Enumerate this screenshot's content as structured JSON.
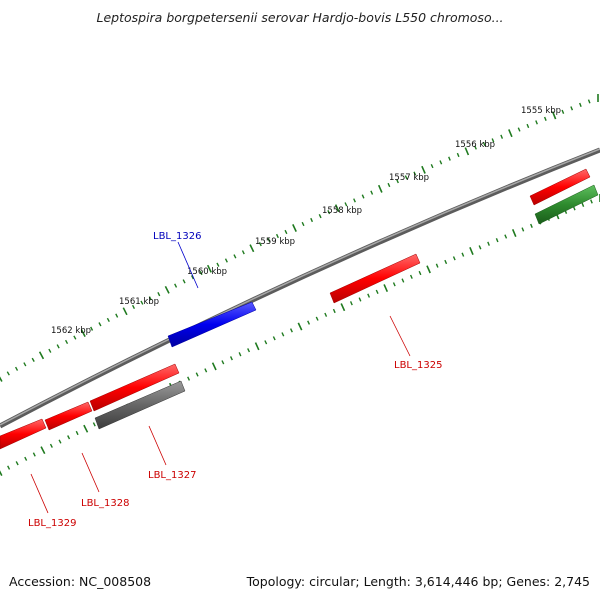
{
  "title": "Leptospira borgpetersenii serovar Hardjo-bovis L550 chromoso...",
  "accession": "Accession: NC_008508",
  "summary": "Topology: circular; Length: 3,614,446 bp; Genes: 2,745",
  "ruler_labels": [
    "1555 kbp",
    "1556 kbp",
    "1557 kbp",
    "1558 kbp",
    "1559 kbp",
    "1560 kbp",
    "1561 kbp",
    "1562 kbp"
  ],
  "colors": {
    "backbone": "#7a7a7a",
    "tick": "#1f7a1f",
    "forward_gene": "#0000ee",
    "reverse_gene": "#ee0000",
    "label_forward": "#0000bb",
    "label_reverse": "#cc0000",
    "rna_gene": "#2e8b2e",
    "pseudo_gene": "#666666"
  },
  "genes": [
    {
      "label": "LBL_1326",
      "strand": "forward"
    },
    {
      "label": "LBL_1325",
      "strand": "reverse"
    },
    {
      "label": "LBL_1327",
      "strand": "reverse"
    },
    {
      "label": "LBL_1328",
      "strand": "reverse"
    },
    {
      "label": "LBL_1329",
      "strand": "reverse"
    }
  ]
}
